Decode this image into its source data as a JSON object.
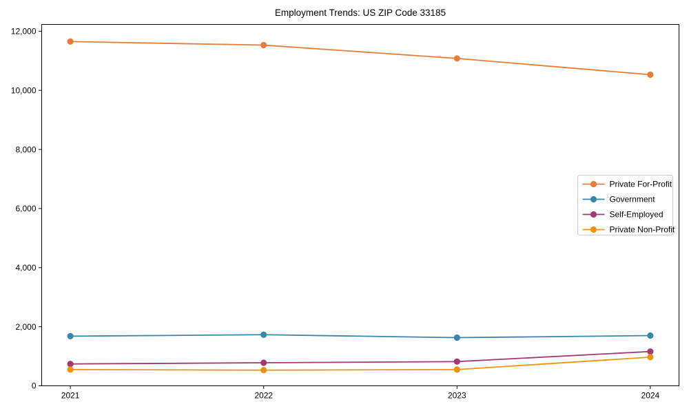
{
  "figure": {
    "background_color": "#ffffff",
    "spine_color": "#000000",
    "text_color": "#000000",
    "legend_border_color": "#c9c9c9"
  },
  "chart_data": {
    "type": "line",
    "title": "Employment Trends: US ZIP Code 33185",
    "xlabel": "",
    "ylabel": "",
    "categories": [
      "2021",
      "2022",
      "2023",
      "2024"
    ],
    "series": [
      {
        "name": "Private For-Profit",
        "color": "#E87D3A",
        "values": [
          11650,
          11530,
          11080,
          10530
        ]
      },
      {
        "name": "Government",
        "color": "#3787AA",
        "values": [
          1680,
          1730,
          1630,
          1700
        ]
      },
      {
        "name": "Self-Employed",
        "color": "#A23B72",
        "values": [
          740,
          780,
          820,
          1160
        ]
      },
      {
        "name": "Private Non-Profit",
        "color": "#F0930A",
        "values": [
          550,
          530,
          550,
          970
        ]
      }
    ],
    "ylim": [
      0,
      12230
    ],
    "yticks": [
      0,
      2000,
      4000,
      6000,
      8000,
      10000,
      12000
    ],
    "yticklabels": [
      "0",
      "2,000",
      "4,000",
      "6,000",
      "8,000",
      "10,000",
      "12,000"
    ],
    "grid": false,
    "marker": "circle",
    "legend_position": "center-right",
    "legend_labels": [
      "Private For-Profit",
      "Government",
      "Self-Employed",
      "Private Non-Profit"
    ]
  }
}
